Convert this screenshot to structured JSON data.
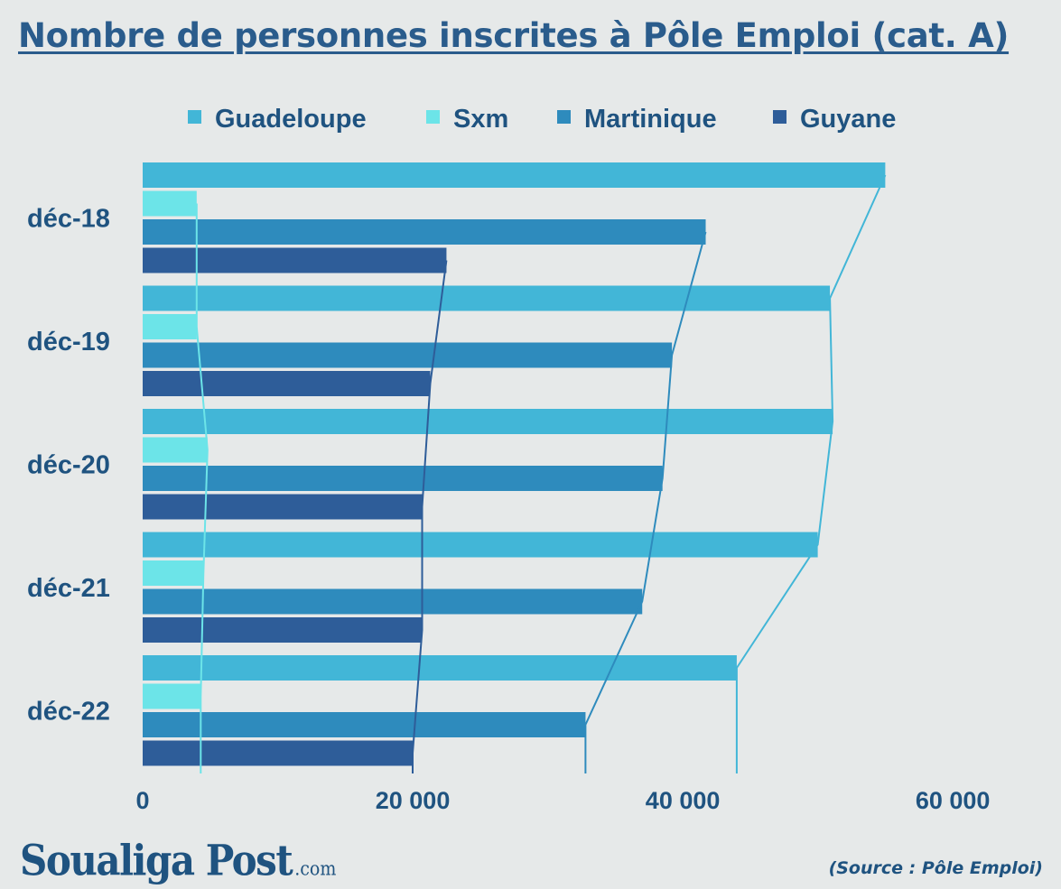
{
  "title": "Nombre de personnes inscrites à Pôle Emploi (cat. A)",
  "logo": {
    "name": "Soualiga Post",
    "suffix": ".com"
  },
  "source": "(Source : Pôle Emploi)",
  "chart_data": {
    "type": "bar",
    "orientation": "horizontal",
    "categories": [
      "déc-18",
      "déc-19",
      "déc-20",
      "déc-21",
      "déc-22"
    ],
    "series": [
      {
        "name": "Guadeloupe",
        "color": "#42b6d7",
        "values": [
          55000,
          50900,
          51100,
          50000,
          44000
        ]
      },
      {
        "name": "Sxm",
        "color": "#6ce4e8",
        "values": [
          4000,
          4000,
          4800,
          4500,
          4300
        ]
      },
      {
        "name": "Martinique",
        "color": "#2e8bbd",
        "values": [
          41700,
          39200,
          38500,
          37000,
          32800
        ]
      },
      {
        "name": "Guyane",
        "color": "#2e5d99",
        "values": [
          22500,
          21300,
          20700,
          20700,
          20000
        ]
      }
    ],
    "xlim": [
      0,
      63000
    ],
    "xticks": [
      0,
      20000,
      40000,
      60000
    ],
    "xtick_labels": [
      "0",
      "20 000",
      "40 000",
      "60 000"
    ],
    "legend_position": "top",
    "grid": false,
    "trend_lines": true
  }
}
